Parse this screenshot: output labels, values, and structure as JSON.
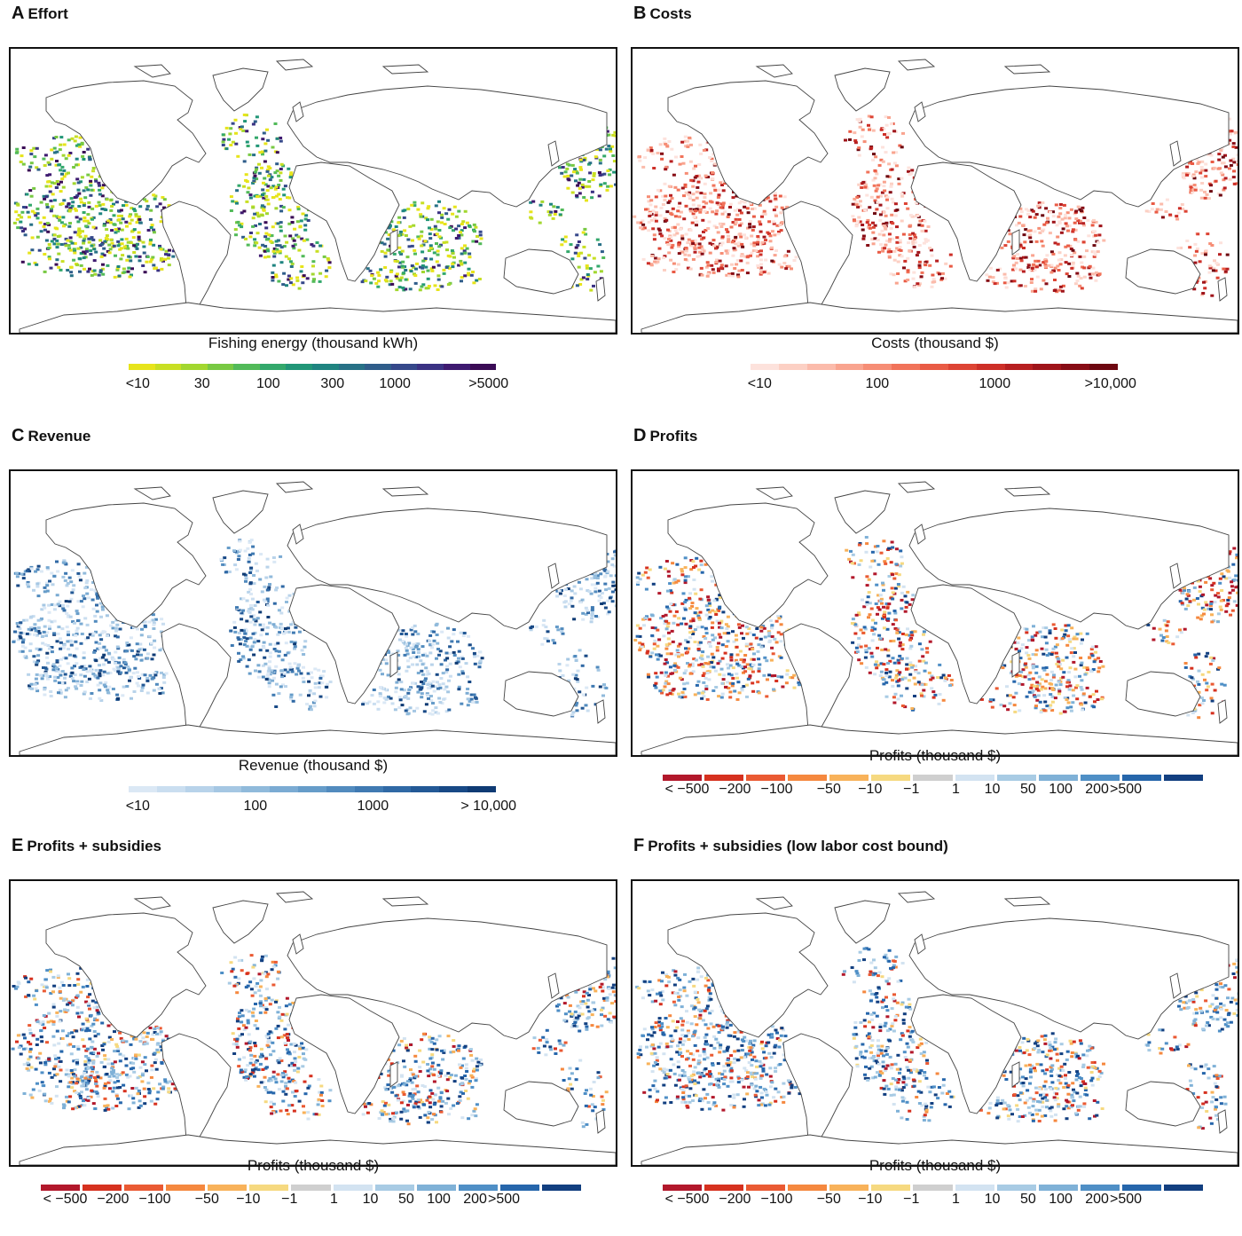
{
  "panels": [
    {
      "letter": "A",
      "title": "Effort",
      "colorbar_label": "Fishing energy (thousand kWh)",
      "palette": [
        "#e7e41b",
        "#c8df23",
        "#a2d72f",
        "#78c943",
        "#52ba59",
        "#33a86b",
        "#219677",
        "#1f8480",
        "#277186",
        "#2f5d8a",
        "#35488a",
        "#3a3283",
        "#3e1a70",
        "#3a0b55"
      ],
      "ticks": [
        "<10",
        "30",
        "100",
        "300",
        "1000",
        ">5000"
      ],
      "tick_pos": [
        0.025,
        0.2,
        0.38,
        0.555,
        0.725,
        0.98
      ]
    },
    {
      "letter": "B",
      "title": "Costs",
      "colorbar_label": "Costs (thousand $)",
      "palette": [
        "#fde2dc",
        "#fcd0c4",
        "#fbbbab",
        "#f9a48f",
        "#f68d75",
        "#f1735a",
        "#e95b45",
        "#dd4434",
        "#cd2f28",
        "#b71f20",
        "#9f141a",
        "#870c15",
        "#6d0710"
      ],
      "ticks": [
        "<10",
        "100",
        "1000",
        ">10,000"
      ],
      "tick_pos": [
        0.025,
        0.345,
        0.665,
        0.98
      ]
    },
    {
      "letter": "C",
      "title": "Revenue",
      "colorbar_label": "Revenue (thousand $)",
      "palette": [
        "#dbe8f5",
        "#cadef0",
        "#b8d3ea",
        "#a5c7e3",
        "#90badb",
        "#7babd3",
        "#669cc9",
        "#528bbe",
        "#407ab2",
        "#3069a5",
        "#235996",
        "#184986",
        "#0f3b74"
      ],
      "ticks": [
        "<10",
        "100",
        "1000",
        "> 10,000"
      ],
      "tick_pos": [
        0.025,
        0.345,
        0.665,
        0.98
      ]
    },
    {
      "letter": "D",
      "title": "Profits",
      "colorbar_label": "Profits (thousand $)",
      "palette": [
        "#b2182b",
        "#d6311f",
        "#ea5a33",
        "#f5883f",
        "#f8b25a",
        "#f6d980",
        "#cfcfcf",
        "#d3e3f1",
        "#a8cbe4",
        "#7fb1d7",
        "#4f8fc6",
        "#2666ab",
        "#123f80"
      ],
      "ticks": [
        "< −500",
        "−200",
        "−100",
        "−50",
        "−10",
        "−1",
        "1",
        "10",
        "50",
        "100",
        "200",
        ">500"
      ],
      "tick_pos": [
        0.045,
        0.133,
        0.21,
        0.306,
        0.382,
        0.458,
        0.54,
        0.607,
        0.673,
        0.733,
        0.8,
        0.853
      ]
    },
    {
      "letter": "E",
      "title": "Profits + subsidies",
      "colorbar_label": "Profits (thousand $)",
      "palette": [
        "#b2182b",
        "#d6311f",
        "#ea5a33",
        "#f5883f",
        "#f8b25a",
        "#f6d980",
        "#cfcfcf",
        "#d3e3f1",
        "#a8cbe4",
        "#7fb1d7",
        "#4f8fc6",
        "#2666ab",
        "#123f80"
      ],
      "ticks": [
        "< −500",
        "−200",
        "−100",
        "−50",
        "−10",
        "−1",
        "1",
        "10",
        "50",
        "100",
        "200",
        ">500"
      ],
      "tick_pos": [
        0.045,
        0.133,
        0.21,
        0.306,
        0.382,
        0.458,
        0.54,
        0.607,
        0.673,
        0.733,
        0.8,
        0.853
      ]
    },
    {
      "letter": "F",
      "title": "Profits + subsidies (low labor cost bound)",
      "colorbar_label": "Profits (thousand $)",
      "palette": [
        "#b2182b",
        "#d6311f",
        "#ea5a33",
        "#f5883f",
        "#f8b25a",
        "#f6d980",
        "#cfcfcf",
        "#d3e3f1",
        "#a8cbe4",
        "#7fb1d7",
        "#4f8fc6",
        "#2666ab",
        "#123f80"
      ],
      "ticks": [
        "< −500",
        "−200",
        "−100",
        "−50",
        "−10",
        "−1",
        "1",
        "10",
        "50",
        "100",
        "200",
        ">500"
      ],
      "tick_pos": [
        0.045,
        0.133,
        0.21,
        0.306,
        0.382,
        0.458,
        0.54,
        0.607,
        0.673,
        0.733,
        0.8,
        0.853
      ]
    }
  ]
}
